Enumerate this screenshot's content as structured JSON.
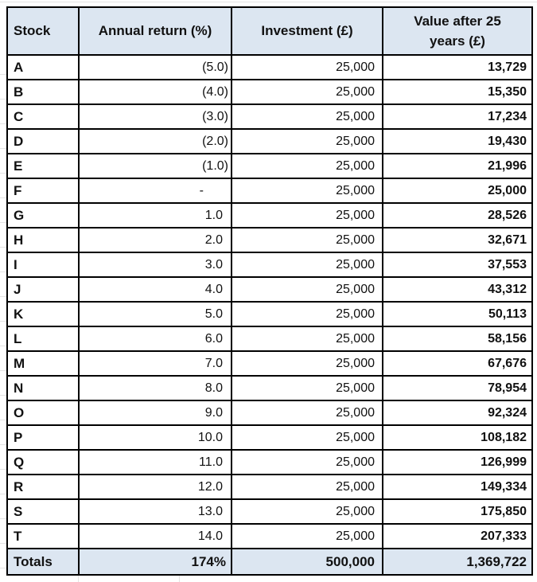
{
  "colors": {
    "header_fill": "#dce6f1",
    "border": "#000000",
    "text": "#111111",
    "gridline": "#e4e4e4"
  },
  "table": {
    "headers": {
      "stock": "Stock",
      "annual_return": "Annual return (%)",
      "investment": "Investment (£)",
      "value": "Value after 25 years (£)"
    },
    "rows": [
      [
        "A",
        "(5.0)",
        "25,000",
        "13,729"
      ],
      [
        "B",
        "(4.0)",
        "25,000",
        "15,350"
      ],
      [
        "C",
        "(3.0)",
        "25,000",
        "17,234"
      ],
      [
        "D",
        "(2.0)",
        "25,000",
        "19,430"
      ],
      [
        "E",
        "(1.0)",
        "25,000",
        "21,996"
      ],
      [
        "F",
        "-",
        "25,000",
        "25,000"
      ],
      [
        "G",
        "1.0",
        "25,000",
        "28,526"
      ],
      [
        "H",
        "2.0",
        "25,000",
        "32,671"
      ],
      [
        "I",
        "3.0",
        "25,000",
        "37,553"
      ],
      [
        "J",
        "4.0",
        "25,000",
        "43,312"
      ],
      [
        "K",
        "5.0",
        "25,000",
        "50,113"
      ],
      [
        "L",
        "6.0",
        "25,000",
        "58,156"
      ],
      [
        "M",
        "7.0",
        "25,000",
        "67,676"
      ],
      [
        "N",
        "8.0",
        "25,000",
        "78,954"
      ],
      [
        "O",
        "9.0",
        "25,000",
        "92,324"
      ],
      [
        "P",
        "10.0",
        "25,000",
        "108,182"
      ],
      [
        "Q",
        "11.0",
        "25,000",
        "126,999"
      ],
      [
        "R",
        "12.0",
        "25,000",
        "149,334"
      ],
      [
        "S",
        "13.0",
        "25,000",
        "175,850"
      ],
      [
        "T",
        "14.0",
        "25,000",
        "207,333"
      ]
    ],
    "totals": [
      "Totals",
      "174%",
      "500,000",
      "1,369,722"
    ]
  }
}
